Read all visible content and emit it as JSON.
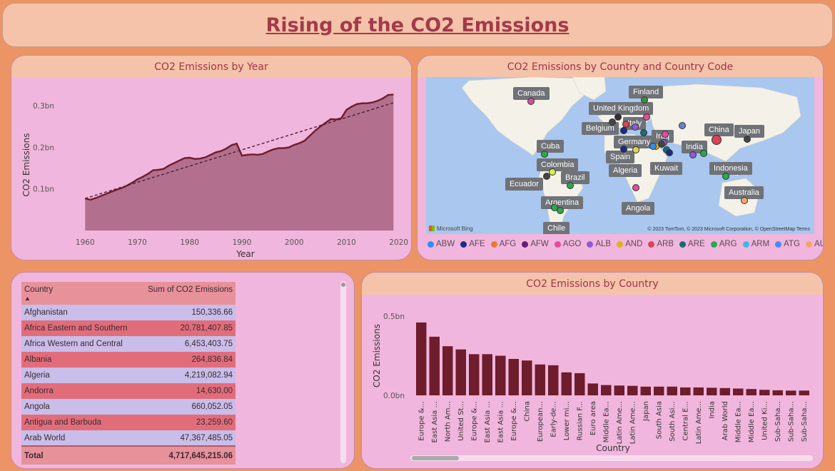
{
  "title": "Rising of the CO2 Emissions",
  "line_panel": {
    "heading": "CO2 Emissions by Year"
  },
  "map_panel": {
    "heading": "CO2 Emissions by Country and Country Code",
    "attribution_left": "Microsoft Bing",
    "attribution_right": "© 2023 TomTom, © 2023 Microsoft Corporation, © OpenStreetMap  Terms",
    "labels": [
      {
        "text": "Canada"
      },
      {
        "text": "Finland"
      },
      {
        "text": "United Kingdom"
      },
      {
        "text": "Italy"
      },
      {
        "text": "Belgium"
      },
      {
        "text": "Germany"
      },
      {
        "text": "Iraq"
      },
      {
        "text": "China"
      },
      {
        "text": "Japan"
      },
      {
        "text": "India"
      },
      {
        "text": "Cuba"
      },
      {
        "text": "Spain"
      },
      {
        "text": "Colombia"
      },
      {
        "text": "Algeria"
      },
      {
        "text": "Kuwait"
      },
      {
        "text": "Indonesia"
      },
      {
        "text": "Brazil"
      },
      {
        "text": "Ecuador"
      },
      {
        "text": "Australia"
      },
      {
        "text": "Argentina"
      },
      {
        "text": "Angola"
      },
      {
        "text": "Chile"
      }
    ],
    "legend": [
      {
        "code": "ABW",
        "color": "#2f8fef"
      },
      {
        "code": "AFE",
        "color": "#1d2b86"
      },
      {
        "code": "AFG",
        "color": "#e87a3a"
      },
      {
        "code": "AFW",
        "color": "#6a1a7d"
      },
      {
        "code": "AGO",
        "color": "#e34aa0"
      },
      {
        "code": "ALB",
        "color": "#8e5ad6"
      },
      {
        "code": "AND",
        "color": "#e0b21b"
      },
      {
        "code": "ARB",
        "color": "#d94458"
      },
      {
        "code": "ARE",
        "color": "#1c6b73"
      },
      {
        "code": "ARG",
        "color": "#2ca84a"
      },
      {
        "code": "ARM",
        "color": "#3fb5e8"
      },
      {
        "code": "ATG",
        "color": "#4a8df0"
      },
      {
        "code": "AUS",
        "color": "#f4a46a"
      }
    ],
    "legend_next": "▶"
  },
  "table_panel": {
    "header_country": "Country",
    "header_sum": "Sum of CO2 Emissions",
    "sort_indicator": "▲",
    "rows": [
      {
        "country": "Afghanistan",
        "value": "150,336.66"
      },
      {
        "country": "Africa Eastern and Southern",
        "value": "20,781,407.85"
      },
      {
        "country": "Africa Western and Central",
        "value": "6,453,403.75"
      },
      {
        "country": "Albania",
        "value": "264,836.84"
      },
      {
        "country": "Algeria",
        "value": "4,219,082.94"
      },
      {
        "country": "Andorra",
        "value": "14,630.00"
      },
      {
        "country": "Angola",
        "value": "660,052.05"
      },
      {
        "country": "Antigua and Barbuda",
        "value": "23,259.60"
      },
      {
        "country": "Arab World",
        "value": "47,367,485.05"
      }
    ],
    "total_label": "Total",
    "total_value": "4,717,645,215.06"
  },
  "bar_panel": {
    "heading": "CO2 Emissions by Country"
  },
  "chart_data": [
    {
      "type": "area",
      "xlabel": "Year",
      "ylabel": "CO2 Emissions",
      "xlim": [
        1956,
        2021
      ],
      "ylim": [
        0.0,
        0.35
      ],
      "x_ticks": [
        1960,
        1970,
        1980,
        1990,
        2000,
        2010,
        2020
      ],
      "y_ticks": [
        {
          "value": 0.1,
          "label": "0.1bn"
        },
        {
          "value": 0.2,
          "label": "0.2bn"
        },
        {
          "value": 0.3,
          "label": "0.3bn"
        }
      ],
      "trend_line": {
        "from": [
          1960,
          0.077
        ],
        "to": [
          2019,
          0.307
        ]
      },
      "x": [
        1960,
        1961,
        1962,
        1963,
        1964,
        1965,
        1966,
        1967,
        1968,
        1969,
        1970,
        1971,
        1972,
        1973,
        1974,
        1975,
        1976,
        1977,
        1978,
        1979,
        1980,
        1981,
        1982,
        1983,
        1984,
        1985,
        1986,
        1987,
        1988,
        1989,
        1990,
        1991,
        1992,
        1993,
        1994,
        1995,
        1996,
        1997,
        1998,
        1999,
        2000,
        2001,
        2002,
        2003,
        2004,
        2005,
        2006,
        2007,
        2008,
        2009,
        2010,
        2011,
        2012,
        2013,
        2014,
        2015,
        2016,
        2017,
        2018,
        2019
      ],
      "values": [
        0.077,
        0.074,
        0.078,
        0.083,
        0.088,
        0.093,
        0.098,
        0.102,
        0.108,
        0.115,
        0.123,
        0.129,
        0.136,
        0.145,
        0.146,
        0.148,
        0.156,
        0.162,
        0.168,
        0.174,
        0.175,
        0.172,
        0.173,
        0.176,
        0.182,
        0.188,
        0.191,
        0.197,
        0.205,
        0.209,
        0.18,
        0.182,
        0.183,
        0.182,
        0.184,
        0.19,
        0.195,
        0.198,
        0.198,
        0.2,
        0.206,
        0.21,
        0.216,
        0.228,
        0.24,
        0.25,
        0.259,
        0.268,
        0.267,
        0.27,
        0.29,
        0.298,
        0.304,
        0.306,
        0.306,
        0.308,
        0.312,
        0.318,
        0.326,
        0.327
      ]
    },
    {
      "type": "bar",
      "xlabel": "Country",
      "ylabel": "CO2 Emissions",
      "ylim": [
        0.0,
        0.5
      ],
      "y_ticks": [
        {
          "value": 0.0,
          "label": "0.0bn"
        },
        {
          "value": 0.5,
          "label": "0.5bn"
        }
      ],
      "categories": [
        "Europe &...",
        "East Asia ...",
        "North Am...",
        "United St...",
        "Europe &...",
        "East Asia ...",
        "East Asia ...",
        "Europe &...",
        "China",
        "European...",
        "Early-de...",
        "Lower mi...",
        "Russian F...",
        "Euro area",
        "Middle Ea...",
        "Latin Ame...",
        "Latin Ame...",
        "Japan",
        "South Asia",
        "South Asi...",
        "Central E...",
        "Latin Ame...",
        "India",
        "Arab World",
        "Middle Ea...",
        "Middle Ea...",
        "United Ki...",
        "Sub-Saha...",
        "Sub-Saha...",
        "Sub-Saha..."
      ],
      "values": [
        0.46,
        0.37,
        0.31,
        0.29,
        0.26,
        0.26,
        0.25,
        0.23,
        0.22,
        0.195,
        0.19,
        0.145,
        0.14,
        0.075,
        0.065,
        0.062,
        0.06,
        0.055,
        0.055,
        0.055,
        0.05,
        0.05,
        0.048,
        0.046,
        0.043,
        0.04,
        0.035,
        0.032,
        0.03,
        0.03
      ]
    }
  ]
}
